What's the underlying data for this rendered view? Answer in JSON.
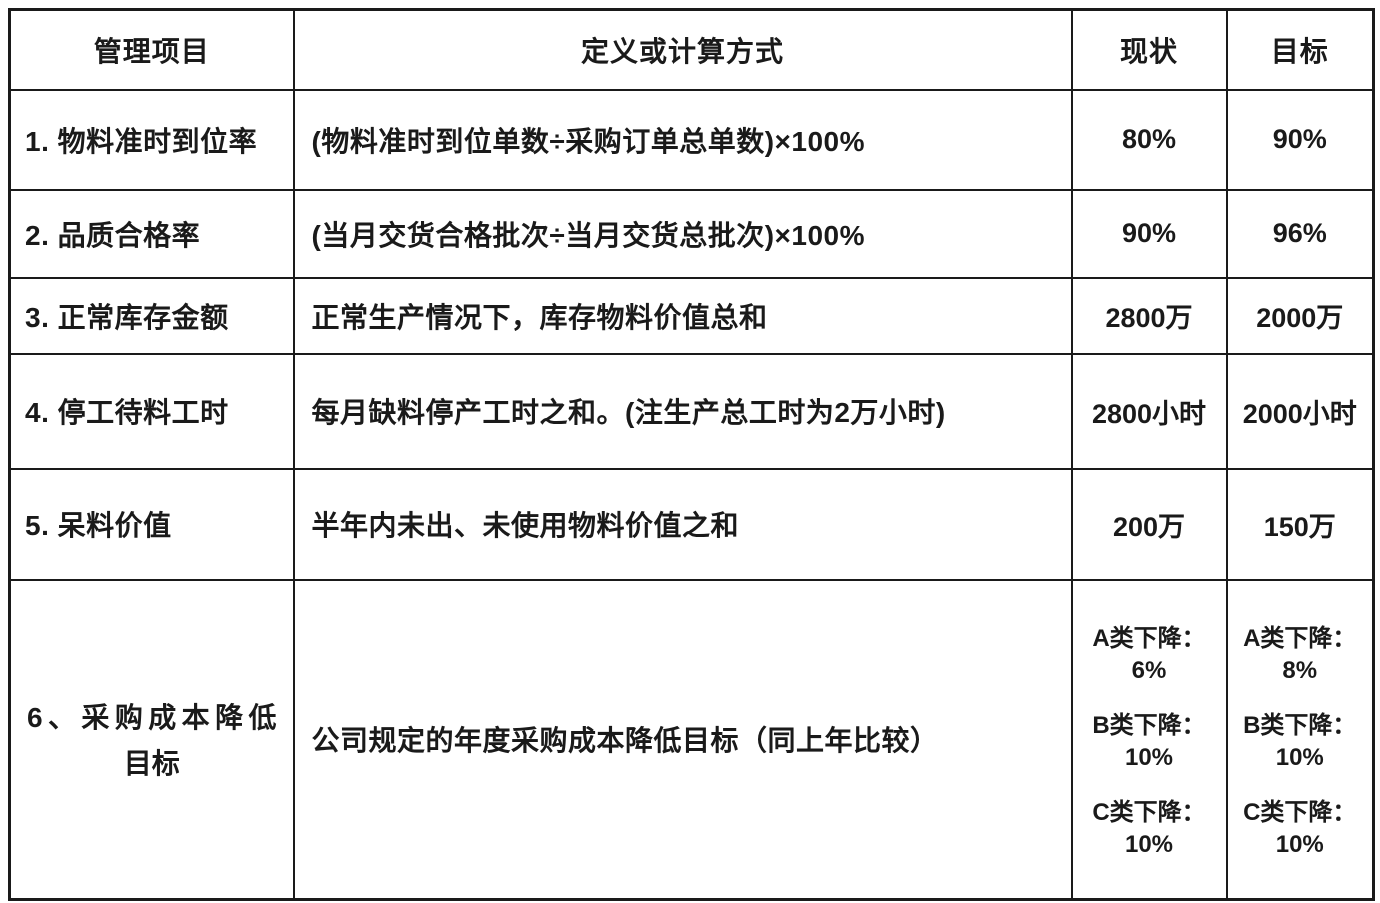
{
  "table": {
    "headers": [
      "管理项目",
      "定义或计算方式",
      "现状",
      "目标"
    ],
    "rows": [
      {
        "item": "1. 物料准时到位率",
        "definition": "(物料准时到位单数÷采购订单总单数)×100%",
        "current": "80%",
        "target": "90%"
      },
      {
        "item": "2. 品质合格率",
        "definition": "(当月交货合格批次÷当月交货总批次)×100%",
        "current": "90%",
        "target": "96%"
      },
      {
        "item": "3. 正常库存金额",
        "definition": "正常生产情况下，库存物料价值总和",
        "current": "2800万",
        "target": "2000万"
      },
      {
        "item": "4. 停工待料工时",
        "definition": "每月缺料停产工时之和。(注生产总工时为2万小时)",
        "current": "2800小时",
        "target": "2000小时"
      },
      {
        "item": "5. 呆料价值",
        "definition": "半年内未出、未使用物料价值之和",
        "current": "200万",
        "target": "150万"
      },
      {
        "item_line1": "6、采购成本降低",
        "item_line2": "目标",
        "definition": "公司规定的年度采购成本降低目标（同上年比较）",
        "current": [
          {
            "label": "A类下降：",
            "value": "6%"
          },
          {
            "label": "B类下降：",
            "value": "10%"
          },
          {
            "label": "C类下降：",
            "value": "10%"
          }
        ],
        "target": [
          {
            "label": "A类下降：",
            "value": "8%"
          },
          {
            "label": "B类下降：",
            "value": "10%"
          },
          {
            "label": "C类下降：",
            "value": "10%"
          }
        ]
      }
    ]
  }
}
